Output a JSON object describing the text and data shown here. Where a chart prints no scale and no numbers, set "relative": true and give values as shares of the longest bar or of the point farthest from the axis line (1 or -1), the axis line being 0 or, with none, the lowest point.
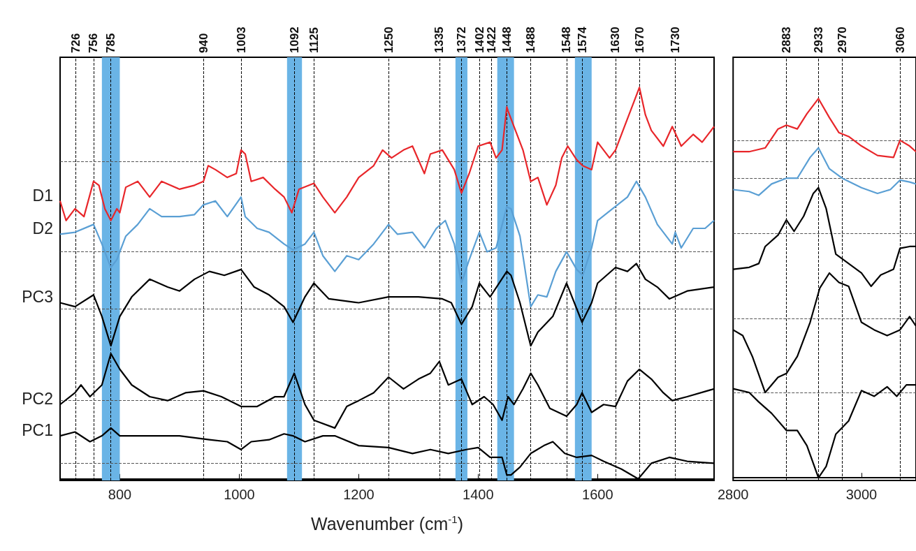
{
  "chart_data": [
    {
      "type": "line",
      "relative": true,
      "xlabel": "Wavenumber (cm$^{-1}$)",
      "xlim": [
        700,
        1795
      ],
      "xticks": [
        800,
        1000,
        1200,
        1400,
        1600
      ],
      "grid": false,
      "legend": false,
      "series": [
        {
          "name": "D1",
          "color": "#e8262a",
          "x": [
            700,
            710,
            725,
            740,
            756,
            765,
            775,
            785,
            795,
            800,
            810,
            830,
            850,
            870,
            900,
            925,
            940,
            948,
            960,
            980,
            995,
            1003,
            1010,
            1020,
            1040,
            1060,
            1075,
            1088,
            1100,
            1125,
            1140,
            1160,
            1180,
            1200,
            1225,
            1240,
            1255,
            1275,
            1290,
            1310,
            1320,
            1340,
            1360,
            1372,
            1385,
            1400,
            1420,
            1430,
            1440,
            1448,
            1450,
            1475,
            1488,
            1500,
            1515,
            1530,
            1540,
            1550,
            1565,
            1575,
            1590,
            1600,
            1620,
            1630,
            1645,
            1660,
            1670,
            1680,
            1690,
            1710,
            1725,
            1740,
            1760,
            1775,
            1795
          ],
          "values": [
            0.71,
            0.66,
            0.69,
            0.67,
            0.76,
            0.75,
            0.69,
            0.66,
            0.69,
            0.68,
            0.745,
            0.76,
            0.72,
            0.76,
            0.74,
            0.75,
            0.76,
            0.8,
            0.79,
            0.77,
            0.78,
            0.84,
            0.83,
            0.76,
            0.77,
            0.74,
            0.72,
            0.68,
            0.74,
            0.755,
            0.72,
            0.68,
            0.72,
            0.77,
            0.8,
            0.84,
            0.82,
            0.84,
            0.85,
            0.78,
            0.83,
            0.84,
            0.79,
            0.73,
            0.78,
            0.85,
            0.86,
            0.82,
            0.84,
            0.95,
            0.94,
            0.84,
            0.76,
            0.77,
            0.7,
            0.75,
            0.82,
            0.85,
            0.815,
            0.8,
            0.79,
            0.86,
            0.82,
            0.84,
            0.9,
            0.96,
            1.0,
            0.93,
            0.89,
            0.85,
            0.9,
            0.85,
            0.88,
            0.86,
            0.9
          ]
        },
        {
          "name": "D2",
          "color": "#5a9fd4",
          "x": [
            700,
            725,
            756,
            770,
            785,
            795,
            810,
            830,
            850,
            870,
            900,
            925,
            940,
            960,
            980,
            1003,
            1010,
            1030,
            1050,
            1075,
            1090,
            1110,
            1125,
            1140,
            1160,
            1180,
            1200,
            1225,
            1250,
            1265,
            1290,
            1310,
            1330,
            1345,
            1360,
            1372,
            1385,
            1402,
            1415,
            1430,
            1448,
            1455,
            1470,
            1488,
            1500,
            1515,
            1530,
            1548,
            1565,
            1575,
            1590,
            1600,
            1625,
            1650,
            1665,
            1680,
            1700,
            1725,
            1730,
            1740,
            1760,
            1780,
            1795
          ],
          "values": [
            0.625,
            0.63,
            0.65,
            0.6,
            0.54,
            0.56,
            0.62,
            0.65,
            0.69,
            0.67,
            0.67,
            0.675,
            0.7,
            0.71,
            0.67,
            0.72,
            0.67,
            0.64,
            0.63,
            0.6,
            0.585,
            0.6,
            0.63,
            0.57,
            0.53,
            0.57,
            0.56,
            0.6,
            0.65,
            0.625,
            0.63,
            0.59,
            0.64,
            0.66,
            0.6,
            0.5,
            0.56,
            0.63,
            0.58,
            0.59,
            0.695,
            0.69,
            0.62,
            0.44,
            0.47,
            0.465,
            0.53,
            0.58,
            0.535,
            0.52,
            0.59,
            0.66,
            0.69,
            0.72,
            0.76,
            0.72,
            0.65,
            0.6,
            0.63,
            0.59,
            0.64,
            0.64,
            0.66
          ]
        },
        {
          "name": "PC3",
          "color": "#000000",
          "x": [
            700,
            725,
            756,
            770,
            785,
            800,
            820,
            850,
            880,
            900,
            925,
            950,
            975,
            1003,
            1025,
            1050,
            1075,
            1090,
            1110,
            1125,
            1150,
            1200,
            1250,
            1300,
            1340,
            1355,
            1372,
            1390,
            1402,
            1420,
            1448,
            1455,
            1470,
            1488,
            1500,
            1525,
            1548,
            1574,
            1590,
            1600,
            1630,
            1650,
            1665,
            1680,
            1700,
            1720,
            1750,
            1795
          ],
          "values": [
            0.45,
            0.44,
            0.47,
            0.415,
            0.34,
            0.415,
            0.465,
            0.51,
            0.49,
            0.48,
            0.51,
            0.53,
            0.52,
            0.535,
            0.49,
            0.47,
            0.44,
            0.4,
            0.465,
            0.5,
            0.46,
            0.45,
            0.465,
            0.465,
            0.46,
            0.45,
            0.395,
            0.44,
            0.5,
            0.465,
            0.53,
            0.52,
            0.45,
            0.34,
            0.375,
            0.415,
            0.5,
            0.4,
            0.45,
            0.5,
            0.54,
            0.53,
            0.55,
            0.51,
            0.49,
            0.46,
            0.48,
            0.49
          ]
        },
        {
          "name": "PC2",
          "color": "#000000",
          "x": [
            700,
            725,
            735,
            750,
            770,
            785,
            800,
            820,
            850,
            880,
            910,
            940,
            970,
            1003,
            1030,
            1060,
            1075,
            1092,
            1110,
            1125,
            1160,
            1180,
            1200,
            1225,
            1250,
            1275,
            1300,
            1320,
            1335,
            1350,
            1372,
            1390,
            1410,
            1425,
            1440,
            1450,
            1460,
            1475,
            1488,
            1500,
            1520,
            1548,
            1565,
            1574,
            1590,
            1610,
            1630,
            1650,
            1670,
            1690,
            1710,
            1725,
            1750,
            1795
          ],
          "values": [
            0.19,
            0.22,
            0.24,
            0.21,
            0.24,
            0.32,
            0.28,
            0.24,
            0.21,
            0.2,
            0.22,
            0.225,
            0.21,
            0.185,
            0.185,
            0.21,
            0.21,
            0.27,
            0.19,
            0.15,
            0.13,
            0.185,
            0.2,
            0.22,
            0.26,
            0.23,
            0.255,
            0.27,
            0.3,
            0.24,
            0.255,
            0.19,
            0.21,
            0.19,
            0.15,
            0.21,
            0.19,
            0.23,
            0.27,
            0.24,
            0.18,
            0.16,
            0.19,
            0.22,
            0.17,
            0.19,
            0.185,
            0.25,
            0.28,
            0.255,
            0.22,
            0.2,
            0.21,
            0.23
          ]
        },
        {
          "name": "PC1",
          "color": "#000000",
          "x": [
            700,
            725,
            750,
            770,
            785,
            800,
            830,
            875,
            900,
            950,
            980,
            1003,
            1020,
            1050,
            1075,
            1090,
            1110,
            1140,
            1160,
            1200,
            1250,
            1290,
            1320,
            1350,
            1380,
            1400,
            1420,
            1440,
            1448,
            1455,
            1470,
            1488,
            1510,
            1525,
            1545,
            1565,
            1590,
            1610,
            1640,
            1668,
            1690,
            1720,
            1750,
            1795
          ],
          "values": [
            0.11,
            0.12,
            0.095,
            0.11,
            0.13,
            0.11,
            0.11,
            0.11,
            0.11,
            0.1,
            0.095,
            0.075,
            0.095,
            0.1,
            0.115,
            0.11,
            0.095,
            0.11,
            0.11,
            0.085,
            0.08,
            0.065,
            0.075,
            0.065,
            0.075,
            0.08,
            0.055,
            0.055,
            0.01,
            0.01,
            0.03,
            0.065,
            0.085,
            0.095,
            0.065,
            0.055,
            0.06,
            0.045,
            0.025,
            0,
            0.04,
            0.055,
            0.045,
            0.04
          ]
        }
      ],
      "ref_lines": [
        {
          "axis": "x",
          "value": 726,
          "label": "726",
          "color": "#000000",
          "line_style": "dashed"
        },
        {
          "axis": "x",
          "value": 756,
          "label": "756",
          "color": "#000000",
          "line_style": "dashed"
        },
        {
          "axis": "x",
          "value": 785,
          "label": "785",
          "color": "#000000",
          "line_style": "dashed"
        },
        {
          "axis": "x",
          "value": 940,
          "label": "940",
          "color": "#000000",
          "line_style": "dashed"
        },
        {
          "axis": "x",
          "value": 1003,
          "label": "1003",
          "color": "#000000",
          "line_style": "dashed"
        },
        {
          "axis": "x",
          "value": 1092,
          "label": "1092",
          "color": "#000000",
          "line_style": "dashed"
        },
        {
          "axis": "x",
          "value": 1125,
          "label": "1125",
          "color": "#000000",
          "line_style": "dashed"
        },
        {
          "axis": "x",
          "value": 1250,
          "label": "1250",
          "color": "#000000",
          "line_style": "dashed"
        },
        {
          "axis": "x",
          "value": 1335,
          "label": "1335",
          "color": "#000000",
          "line_style": "dashed"
        },
        {
          "axis": "x",
          "value": 1372,
          "label": "1372",
          "color": "#000000",
          "line_style": "dashed"
        },
        {
          "axis": "x",
          "value": 1402,
          "label": "1402",
          "color": "#000000",
          "line_style": "dashed"
        },
        {
          "axis": "x",
          "value": 1422,
          "label": "1422",
          "color": "#000000",
          "line_style": "dashed"
        },
        {
          "axis": "x",
          "value": 1448,
          "label": "1448",
          "color": "#000000",
          "line_style": "dashed"
        },
        {
          "axis": "x",
          "value": 1488,
          "label": "1488",
          "color": "#000000",
          "line_style": "dashed"
        },
        {
          "axis": "x",
          "value": 1548,
          "label": "1548",
          "color": "#000000",
          "line_style": "dashed"
        },
        {
          "axis": "x",
          "value": 1574,
          "label": "1574",
          "color": "#000000",
          "line_style": "dashed"
        },
        {
          "axis": "x",
          "value": 1630,
          "label": "1630",
          "color": "#000000",
          "line_style": "dashed"
        },
        {
          "axis": "x",
          "value": 1670,
          "label": "1670",
          "color": "#000000",
          "line_style": "dashed"
        },
        {
          "axis": "x",
          "value": 1730,
          "label": "1730",
          "color": "#000000",
          "line_style": "dashed"
        },
        {
          "axis": "y",
          "value": 0.81,
          "color": "#555555",
          "line_style": "dashed"
        },
        {
          "axis": "y",
          "value": 0.58,
          "color": "#555555",
          "line_style": "dashed"
        },
        {
          "axis": "y",
          "value": 0.435,
          "color": "#555555",
          "line_style": "dashed"
        },
        {
          "axis": "y",
          "value": 0.2,
          "color": "#555555",
          "line_style": "dashed"
        },
        {
          "axis": "y",
          "value": 0.04,
          "color": "#555555",
          "line_style": "dashed"
        }
      ],
      "bands": [
        {
          "axis": "x",
          "from": 770,
          "to": 800,
          "color": "#6ab4e6"
        },
        {
          "axis": "x",
          "from": 1080,
          "to": 1105,
          "color": "#6ab4e6"
        },
        {
          "axis": "x",
          "from": 1362,
          "to": 1382,
          "color": "#6ab4e6"
        },
        {
          "axis": "x",
          "from": 1432,
          "to": 1460,
          "color": "#6ab4e6"
        },
        {
          "axis": "x",
          "from": 1562,
          "to": 1590,
          "color": "#6ab4e6"
        }
      ]
    },
    {
      "type": "line",
      "relative": true,
      "xlim": [
        2800,
        3085
      ],
      "xticks": [
        2800,
        3000
      ],
      "grid": false,
      "legend": false,
      "series": [
        {
          "color": "#e8262a",
          "x": [
            2800,
            2825,
            2850,
            2870,
            2883,
            2900,
            2915,
            2933,
            2950,
            2965,
            2980,
            3000,
            3025,
            3050,
            3060,
            3075,
            3085
          ],
          "values": [
            0.86,
            0.86,
            0.87,
            0.92,
            0.93,
            0.92,
            0.96,
            1.0,
            0.95,
            0.91,
            0.9,
            0.875,
            0.85,
            0.845,
            0.89,
            0.875,
            0.86
          ]
        },
        {
          "color": "#5a9fd4",
          "x": [
            2800,
            2825,
            2840,
            2860,
            2883,
            2900,
            2920,
            2933,
            2950,
            2970,
            3000,
            3025,
            3045,
            3060,
            3075,
            3085
          ],
          "values": [
            0.76,
            0.755,
            0.745,
            0.775,
            0.79,
            0.79,
            0.845,
            0.87,
            0.815,
            0.79,
            0.765,
            0.75,
            0.76,
            0.785,
            0.78,
            0.775
          ]
        },
        {
          "color": "#000000",
          "x": [
            2800,
            2825,
            2840,
            2850,
            2870,
            2883,
            2895,
            2910,
            2925,
            2933,
            2945,
            2960,
            2980,
            3000,
            3015,
            3030,
            3050,
            3060,
            3075,
            3085
          ],
          "values": [
            0.55,
            0.555,
            0.565,
            0.61,
            0.64,
            0.68,
            0.65,
            0.69,
            0.75,
            0.765,
            0.71,
            0.59,
            0.565,
            0.54,
            0.505,
            0.535,
            0.55,
            0.605,
            0.61,
            0.61
          ]
        },
        {
          "color": "#000000",
          "x": [
            2800,
            2815,
            2830,
            2850,
            2870,
            2883,
            2900,
            2920,
            2935,
            2950,
            2965,
            2980,
            3000,
            3020,
            3040,
            3060,
            3075,
            3085
          ],
          "values": [
            0.39,
            0.375,
            0.32,
            0.225,
            0.265,
            0.275,
            0.32,
            0.41,
            0.5,
            0.54,
            0.515,
            0.505,
            0.41,
            0.39,
            0.375,
            0.39,
            0.425,
            0.4
          ]
        },
        {
          "color": "#000000",
          "x": [
            2800,
            2825,
            2840,
            2860,
            2883,
            2900,
            2915,
            2933,
            2945,
            2960,
            2980,
            3000,
            3020,
            3040,
            3055,
            3070,
            3085
          ],
          "values": [
            0.235,
            0.225,
            0.2,
            0.17,
            0.125,
            0.125,
            0.085,
            0,
            0.03,
            0.115,
            0.15,
            0.23,
            0.215,
            0.24,
            0.215,
            0.245,
            0.245
          ]
        }
      ],
      "ref_lines": [
        {
          "axis": "x",
          "value": 2883,
          "label": "2883",
          "color": "#000000",
          "line_style": "dashed"
        },
        {
          "axis": "x",
          "value": 2933,
          "label": "2933",
          "color": "#000000",
          "line_style": "dashed"
        },
        {
          "axis": "x",
          "value": 2970,
          "label": "2970",
          "color": "#000000",
          "line_style": "dashed"
        },
        {
          "axis": "x",
          "value": 3060,
          "label": "3060",
          "color": "#000000",
          "line_style": "dashed"
        },
        {
          "axis": "y",
          "value": 0.89,
          "color": "#555555",
          "line_style": "dashed"
        },
        {
          "axis": "y",
          "value": 0.79,
          "color": "#555555",
          "line_style": "dashed"
        },
        {
          "axis": "y",
          "value": 0.645,
          "color": "#555555",
          "line_style": "dashed"
        },
        {
          "axis": "y",
          "value": 0.42,
          "color": "#555555",
          "line_style": "dashed"
        },
        {
          "axis": "y",
          "value": 0.225,
          "color": "#555555",
          "line_style": "dashed"
        }
      ]
    }
  ]
}
